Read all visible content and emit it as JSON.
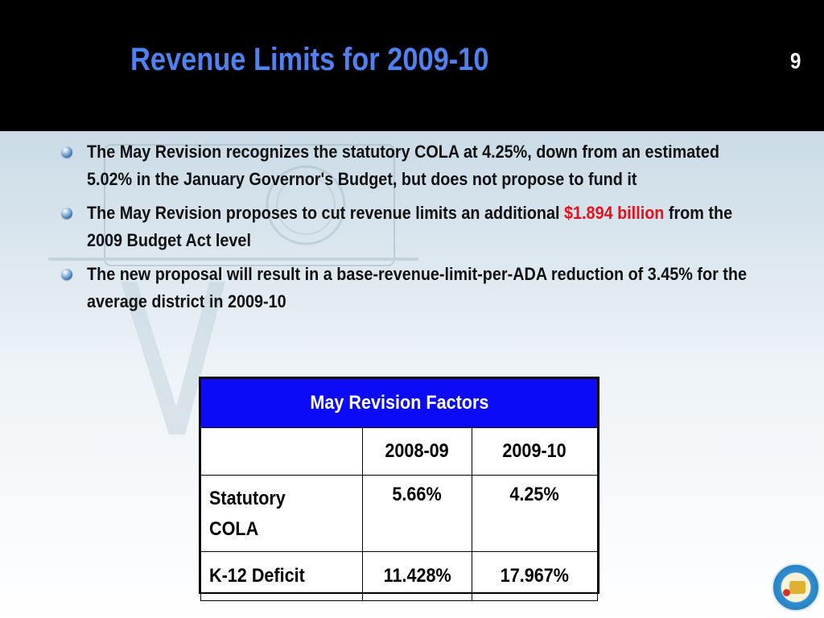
{
  "slide": {
    "title": "Revenue Limits for 2009-10",
    "number": "9"
  },
  "bullets": [
    {
      "parts": [
        {
          "text": "The May Revision recognizes the statutory COLA at 4.25%, down from an estimated 5.02% in the January Governor's Budget, but does not propose to fund it",
          "color": "#111111"
        }
      ]
    },
    {
      "parts": [
        {
          "text": "The May Revision proposes to cut revenue limits an additional ",
          "color": "#111111"
        },
        {
          "text": "$1.894 billion",
          "color": "#e8101a"
        },
        {
          "text": " from the 2009 Budget Act level",
          "color": "#111111"
        }
      ]
    },
    {
      "parts": [
        {
          "text": "The new proposal will result in a base-revenue-limit-per-ADA reduction of 3.45% for the average district in 2009-10",
          "color": "#111111"
        }
      ]
    }
  ],
  "table": {
    "header": "May Revision Factors",
    "columns": [
      "",
      "2008-09",
      "2009-10"
    ],
    "rows": [
      {
        "label": "Statutory COLA",
        "values": [
          "5.66%",
          "4.25%"
        ]
      },
      {
        "label": "K-12 Deficit",
        "values": [
          "11.428%",
          "17.967%"
        ]
      }
    ]
  },
  "colors": {
    "title": "#4f81f0",
    "title_bar": "#000000",
    "table_header": "#0b0bf7",
    "highlight": "#e8101a"
  },
  "icons": {
    "bullet": "blue-sphere-bullet-icon",
    "logo": "school-district-seal-icon"
  }
}
